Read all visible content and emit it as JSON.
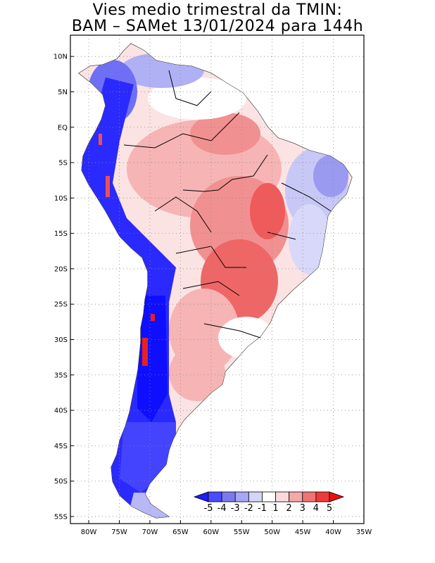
{
  "title": {
    "line1": "Vies medio trimestral da TMIN:",
    "line2": "BAM – SAMet 13/01/2024  para 144h"
  },
  "map": {
    "lon_range": [
      -83,
      -35
    ],
    "lat_range": [
      -56,
      13
    ],
    "grid": "dotted",
    "lat_ticks": [
      {
        "value": 10,
        "label": "10N"
      },
      {
        "value": 5,
        "label": "5N"
      },
      {
        "value": 0,
        "label": "EQ"
      },
      {
        "value": -5,
        "label": "5S"
      },
      {
        "value": -10,
        "label": "10S"
      },
      {
        "value": -15,
        "label": "15S"
      },
      {
        "value": -20,
        "label": "20S"
      },
      {
        "value": -25,
        "label": "25S"
      },
      {
        "value": -30,
        "label": "30S"
      },
      {
        "value": -35,
        "label": "35S"
      },
      {
        "value": -40,
        "label": "40S"
      },
      {
        "value": -45,
        "label": "45S"
      },
      {
        "value": -50,
        "label": "50S"
      },
      {
        "value": -55,
        "label": "55S"
      }
    ],
    "lon_ticks": [
      {
        "value": -80,
        "label": "80W"
      },
      {
        "value": -75,
        "label": "75W"
      },
      {
        "value": -70,
        "label": "70W"
      },
      {
        "value": -65,
        "label": "65W"
      },
      {
        "value": -60,
        "label": "60W"
      },
      {
        "value": -55,
        "label": "55W"
      },
      {
        "value": -50,
        "label": "50W"
      },
      {
        "value": -45,
        "label": "45W"
      },
      {
        "value": -40,
        "label": "40W"
      },
      {
        "value": -35,
        "label": "35W"
      }
    ]
  },
  "colorbar": {
    "levels": [
      "-5",
      "-4",
      "-3",
      "-2",
      "-1",
      "1",
      "2",
      "3",
      "4",
      "5"
    ],
    "colors": [
      "#1c1cff",
      "#4a4aff",
      "#7a7aee",
      "#a7a7f3",
      "#d5d5fa",
      "#ffffff",
      "#fadada",
      "#f5a8a8",
      "#f07373",
      "#ee3a3a",
      "#e8100f"
    ]
  },
  "colors": {
    "strong_cold": "#1414ff",
    "cold": "#5a5aff",
    "weak_cold": "#b7b7f5",
    "neutral": "#ffffff",
    "weak_warm": "#fadada",
    "warm": "#f7a9a9",
    "strong_warm": "#ef4d4d"
  }
}
